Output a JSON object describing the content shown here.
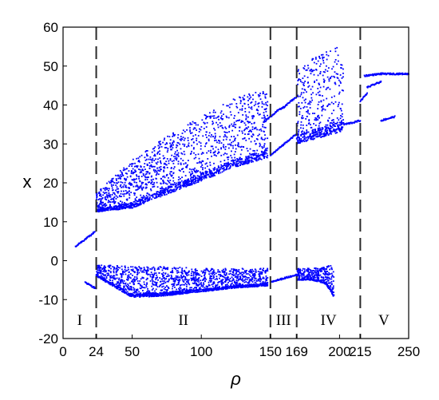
{
  "chart_data": {
    "type": "scatter",
    "title": "",
    "xlabel": "ρ",
    "ylabel": "x",
    "xlim": [
      0,
      250
    ],
    "ylim": [
      -20,
      60
    ],
    "grid": false,
    "legend": "none",
    "x_ticks": [
      {
        "value": 0,
        "label": "0",
        "color": "#000000"
      },
      {
        "value": 24,
        "label": "24",
        "color": "#e8221b"
      },
      {
        "value": 50,
        "label": "50",
        "color": "#000000"
      },
      {
        "value": 100,
        "label": "100",
        "color": "#000000"
      },
      {
        "value": 150,
        "label": "150",
        "color": "#000000"
      },
      {
        "value": 169,
        "label": "169",
        "color": "#e8221b"
      },
      {
        "value": 200,
        "label": "200",
        "color": "#000000"
      },
      {
        "value": 215,
        "label": "215",
        "color": "#e8221b"
      },
      {
        "value": 250,
        "label": "250",
        "color": "#000000"
      }
    ],
    "y_ticks": [
      -20,
      -10,
      0,
      10,
      20,
      30,
      40,
      50,
      60
    ],
    "boundaries": [
      24,
      150,
      169,
      215
    ],
    "regions": [
      {
        "label": "I",
        "x": 12
      },
      {
        "label": "II",
        "x": 87
      },
      {
        "label": "III",
        "x": 159.5
      },
      {
        "label": "IV",
        "x": 192
      },
      {
        "label": "V",
        "x": 232
      }
    ],
    "series": [
      {
        "color": "#0000ff",
        "description_points": "bifurcation diagram of local maxima/minima of x versus rho",
        "branches": [
          {
            "kind": "line",
            "x": [
              9,
              12,
              16,
              20,
              23
            ],
            "y": [
              3.5,
              4.5,
              5.5,
              6.5,
              7.5
            ]
          },
          {
            "kind": "line",
            "x": [
              16,
              19,
              22,
              24
            ],
            "y": [
              -5.5,
              -6.2,
              -6.8,
              -7.2
            ]
          },
          {
            "kind": "band",
            "x": [
              24,
              50,
              75,
              100,
              125,
              148
            ],
            "lower": [
              12.5,
              13.5,
              17,
              20.5,
              24,
              26.5
            ],
            "upper": [
              17.5,
              26,
              32,
              37,
              42,
              44
            ]
          },
          {
            "kind": "band",
            "x": [
              24,
              50,
              75,
              100,
              125,
              148
            ],
            "lower": [
              -4,
              -9.5,
              -9,
              -8,
              -7,
              -6.5
            ],
            "upper": [
              -1,
              -1.5,
              -1.5,
              -2,
              -2,
              -2
            ]
          },
          {
            "kind": "line",
            "x": [
              150,
              155,
              160,
              165,
              169
            ],
            "y": [
              27,
              28.5,
              30,
              31.5,
              32.5
            ]
          },
          {
            "kind": "line",
            "x": [
              145,
              150,
              155,
              160,
              165,
              169
            ],
            "y": [
              35.5,
              37,
              38.5,
              39.5,
              41,
              42
            ]
          },
          {
            "kind": "line",
            "x": [
              150,
              155,
              160,
              165,
              169
            ],
            "y": [
              -5.5,
              -5,
              -4.5,
              -4,
              -3.5
            ]
          },
          {
            "kind": "band",
            "x": [
              169,
              180,
              190,
              200,
              203
            ],
            "lower": [
              30,
              31,
              32,
              33,
              33.5
            ],
            "upper": [
              49,
              52,
              54,
              55,
              53
            ]
          },
          {
            "kind": "band",
            "x": [
              169,
              180,
              190,
              196
            ],
            "lower": [
              -5,
              -5,
              -6,
              -9.5
            ],
            "upper": [
              -2,
              -2,
              -1.5,
              -1
            ]
          },
          {
            "kind": "line",
            "x": [
              203,
              210,
              215
            ],
            "y": [
              35,
              35.5,
              36
            ]
          },
          {
            "kind": "line",
            "x": [
              215,
              220
            ],
            "y": [
              41,
              43
            ]
          },
          {
            "kind": "line",
            "x": [
              218,
              230
            ],
            "y": [
              47.5,
              48
            ]
          },
          {
            "kind": "line",
            "x": [
              220,
              230
            ],
            "y": [
              44.5,
              46
            ]
          },
          {
            "kind": "line",
            "x": [
              230,
              250
            ],
            "y": [
              48,
              48
            ]
          },
          {
            "kind": "line",
            "x": [
              230,
              240
            ],
            "y": [
              36,
              37
            ]
          }
        ]
      }
    ]
  }
}
